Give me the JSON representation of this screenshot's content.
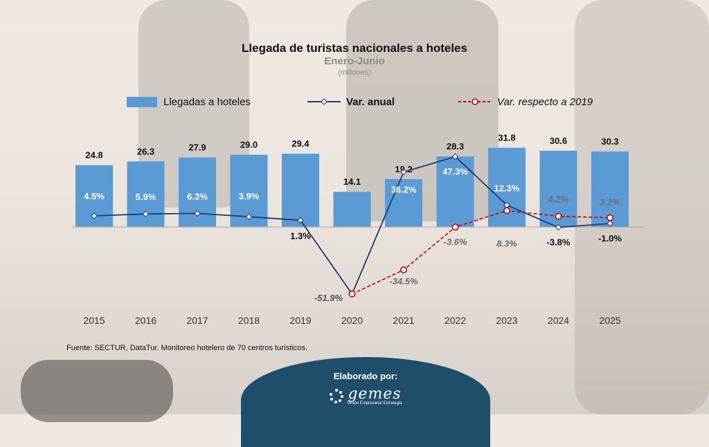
{
  "title": "Llegada de turistas nacionales a hoteles",
  "subtitle": "Enero-Junio",
  "units": "(millones)",
  "legend": {
    "bars": "Llegadas a hoteles",
    "annual": "Var. anual",
    "vs2019": "Var. respecto a 2019"
  },
  "source": "Fuente: SECTUR, DataTur. Monitoreo hotelero de 70 centros turísticos.",
  "footer": {
    "label": "Elaborado por:",
    "logo_text": "gemes",
    "logo_subtext": "Grupo Empresarial Estrategia"
  },
  "colors": {
    "bars": "#5b9bd5",
    "annual_line": "#1f3a6e",
    "vs2019_line": "#c00000",
    "badge": "#1f4e6b"
  },
  "chart_data": {
    "type": "bar",
    "categories": [
      "2015",
      "2016",
      "2017",
      "2018",
      "2019",
      "2020",
      "2021",
      "2022",
      "2023",
      "2024",
      "2025"
    ],
    "series": [
      {
        "name": "Llegadas a hoteles",
        "type": "bar",
        "values": [
          24.8,
          26.3,
          27.9,
          29.0,
          29.4,
          14.1,
          19.2,
          28.3,
          31.8,
          30.6,
          30.3
        ],
        "labels": [
          "24.8",
          "26.3",
          "27.9",
          "29.0",
          "29.4",
          "14.1",
          "19.2",
          "28.3",
          "31.8",
          "30.6",
          "30.3"
        ]
      },
      {
        "name": "Var. anual",
        "type": "line",
        "values": [
          4.5,
          5.9,
          6.3,
          3.9,
          1.3,
          -51.9,
          36.2,
          47.3,
          12.3,
          -3.8,
          -1.0
        ],
        "labels": [
          "4.5%",
          "5.9%",
          "6.3%",
          "3.9%",
          "1.3%",
          "-51.9%",
          "36.2%",
          "47.3%",
          "12.3%",
          "-3.8%",
          "-1.0%"
        ]
      },
      {
        "name": "Var. respecto a 2019",
        "type": "line",
        "dashed": true,
        "values": [
          null,
          null,
          null,
          null,
          null,
          -51.9,
          -34.5,
          -3.6,
          8.3,
          4.2,
          3.2
        ],
        "labels": [
          "",
          "",
          "",
          "",
          "",
          "",
          "-34.5%",
          "-3.6%",
          "8.3%",
          "4.2%",
          "3.2%"
        ]
      }
    ],
    "legend_position": "top",
    "grid": false
  }
}
